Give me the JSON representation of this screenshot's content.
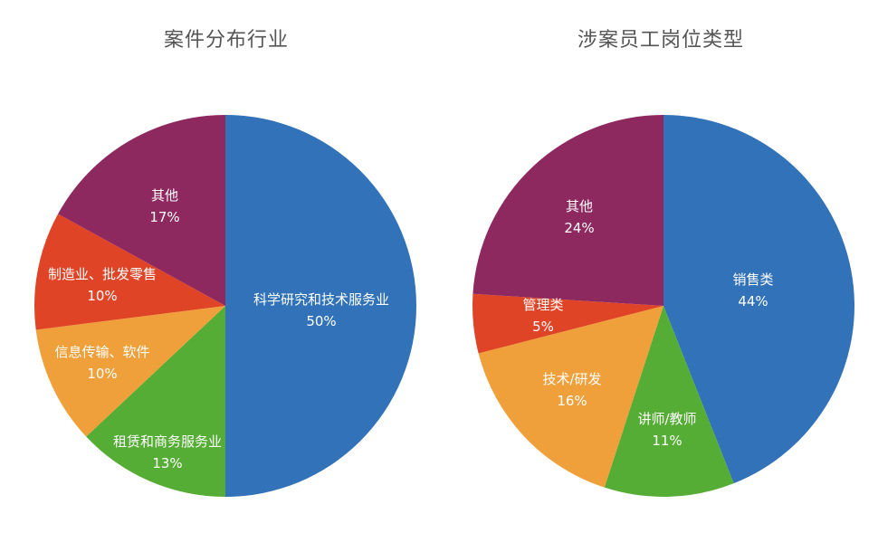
{
  "chart_data": [
    {
      "type": "pie",
      "title": "案件分布行业",
      "slices": [
        {
          "label": "科学研究和技术服务业",
          "value": 50,
          "value_text": "50%",
          "color": "#3272b8"
        },
        {
          "label": "租赁和商务服务业",
          "value": 13,
          "value_text": "13%",
          "color": "#56ad36"
        },
        {
          "label": "信息传输、软件",
          "value": 10,
          "value_text": "10%",
          "color": "#f0a03a"
        },
        {
          "label": "制造业、批发零售",
          "value": 10,
          "value_text": "10%",
          "color": "#e04427"
        },
        {
          "label": "其他",
          "value": 17,
          "value_text": "17%",
          "color": "#8e2960"
        }
      ]
    },
    {
      "type": "pie",
      "title": "涉案员工岗位类型",
      "slices": [
        {
          "label": "销售类",
          "value": 44,
          "value_text": "44%",
          "color": "#3272b8"
        },
        {
          "label": "讲师/教师",
          "value": 11,
          "value_text": "11%",
          "color": "#56ad36"
        },
        {
          "label": "技术/研发",
          "value": 16,
          "value_text": "16%",
          "color": "#f0a03a"
        },
        {
          "label": "管理类",
          "value": 5,
          "value_text": "5%",
          "color": "#e04427"
        },
        {
          "label": "其他",
          "value": 24,
          "value_text": "24%",
          "color": "#8e2960"
        }
      ]
    }
  ]
}
